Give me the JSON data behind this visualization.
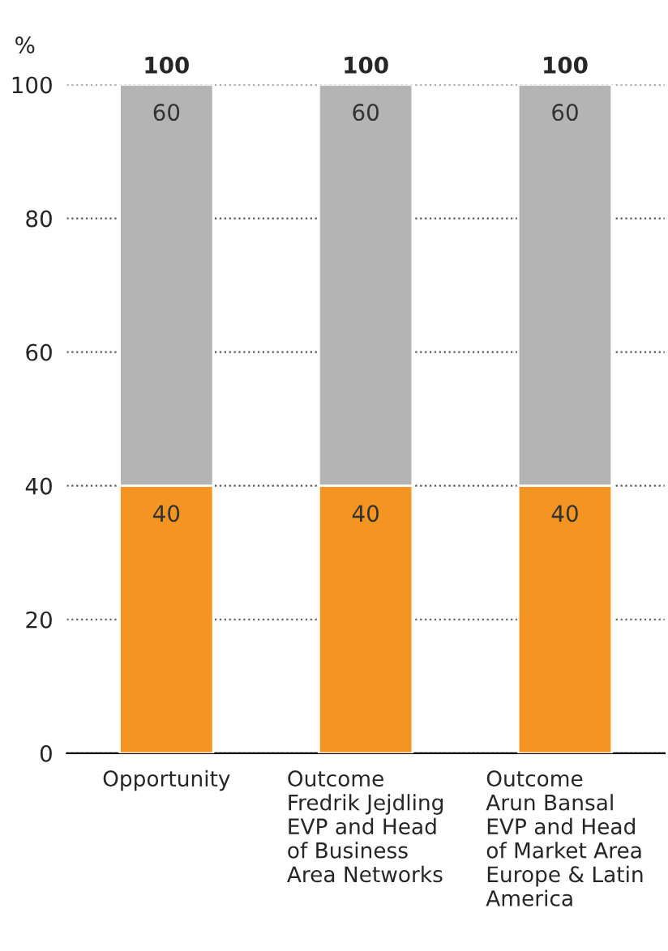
{
  "chart_data": {
    "type": "bar",
    "stacked": true,
    "ylabel": "%",
    "categories": [
      "Opportunity",
      "Outcome\nFredrik Jejdling\nEVP and Head\nof Business\nArea Networks",
      "Outcome\nArun Bansal\nEVP and Head\nof Market Area\nEurope & Latin\nAmerica"
    ],
    "series": [
      {
        "color": "#f39423",
        "values": [
          40,
          40,
          40
        ]
      },
      {
        "color": "#b4b4b4",
        "values": [
          60,
          60,
          60
        ]
      }
    ],
    "ylim": [
      0,
      100
    ],
    "yticks": [
      0,
      20,
      40,
      60,
      80,
      100
    ],
    "grid": "y",
    "data_labels": true,
    "totals": [
      "100",
      "100",
      "100"
    ]
  }
}
